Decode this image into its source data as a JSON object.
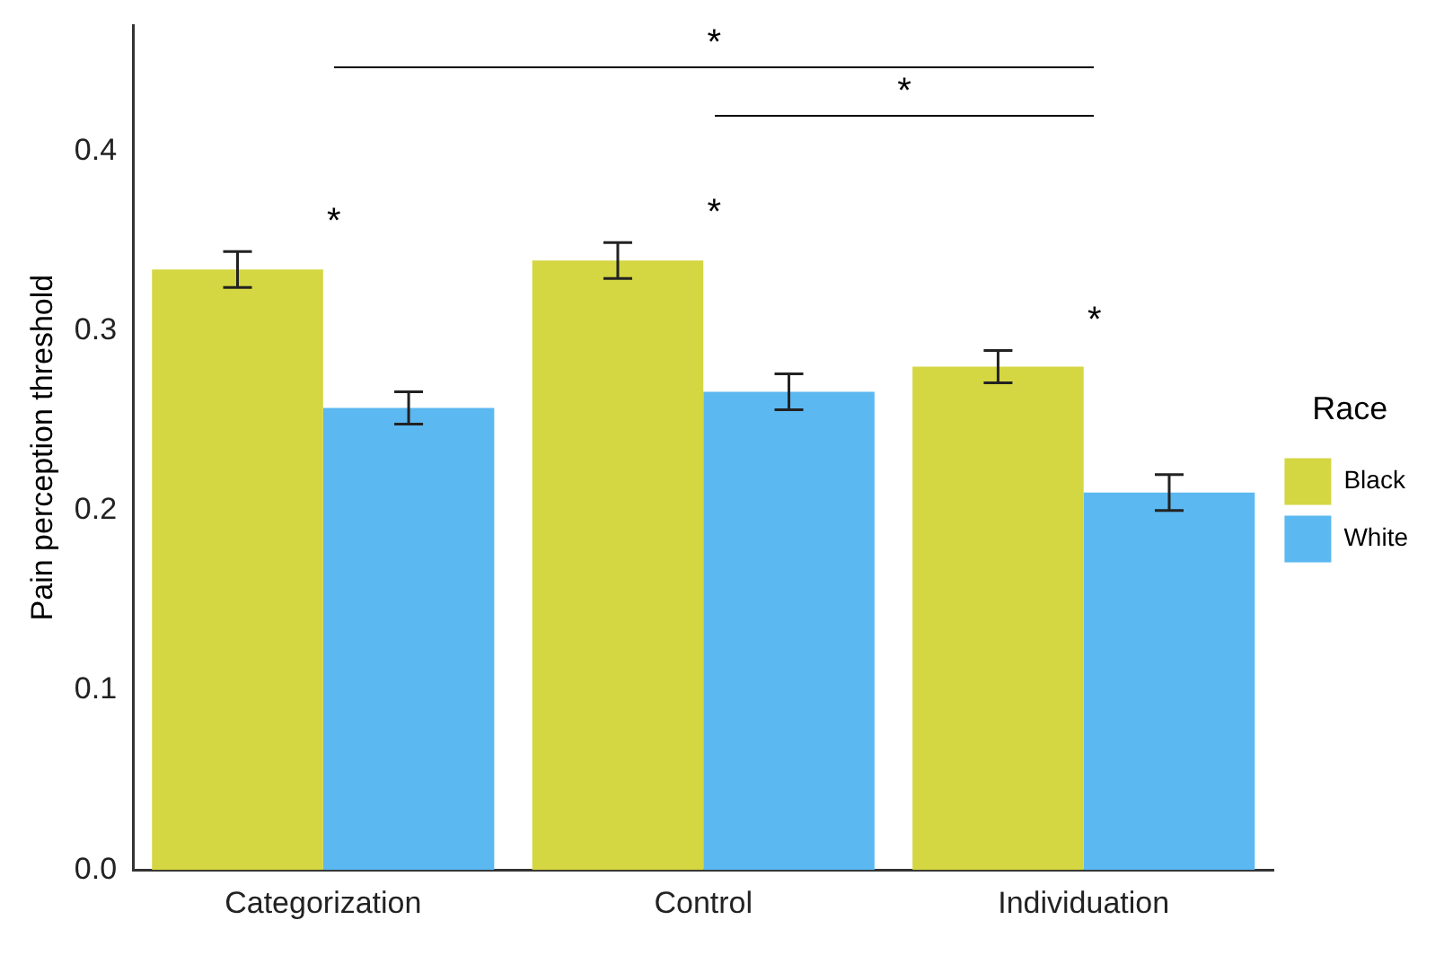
{
  "chart_data": {
    "type": "bar",
    "ylabel": "Pain perception threshold",
    "legend_title": "Race",
    "legend": "right",
    "grid": false,
    "categories": [
      "Categorization",
      "Control",
      "Individuation"
    ],
    "series": [
      {
        "name": "Black",
        "color": "#d4d642",
        "values": [
          0.334,
          0.339,
          0.28
        ],
        "errors": [
          0.01,
          0.01,
          0.009
        ]
      },
      {
        "name": "White",
        "color": "#5bb8f0",
        "values": [
          0.257,
          0.266,
          0.21
        ],
        "errors": [
          0.009,
          0.01,
          0.01
        ]
      }
    ],
    "ylim": [
      0,
      0.47
    ],
    "yticks": [
      {
        "value": 0,
        "label": "0.0"
      },
      {
        "value": 0.1,
        "label": "0.1"
      },
      {
        "value": 0.2,
        "label": "0.2"
      },
      {
        "value": 0.3,
        "label": "0.3"
      },
      {
        "value": 0.4,
        "label": "0.4"
      }
    ],
    "annotations": [
      "*",
      "*",
      "*",
      "*",
      "*"
    ]
  }
}
